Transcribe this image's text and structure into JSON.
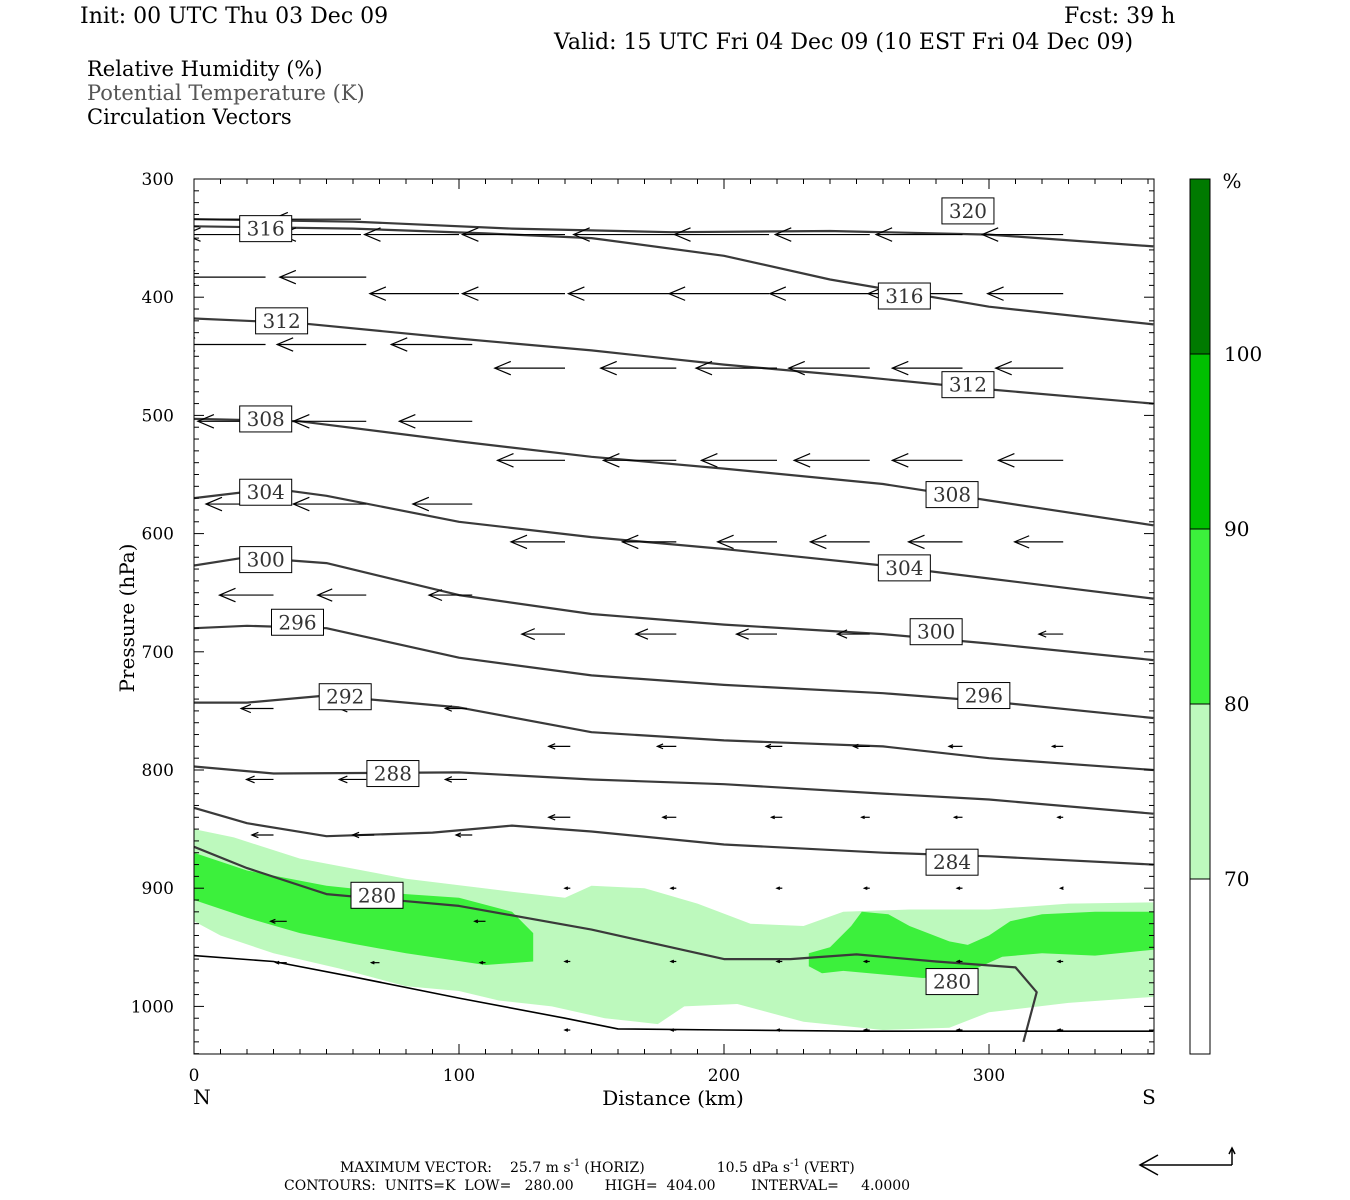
{
  "header": {
    "init": "Init: 00 UTC Thu 03 Dec 09",
    "fcst": "Fcst:   39 h",
    "valid": "Valid: 15 UTC Fri 04 Dec 09 (10 EST Fri 04 Dec 09)"
  },
  "legend": {
    "rh": "Relative Humidity (%)",
    "theta": "Potential Temperature (K)",
    "vectors": "Circulation Vectors"
  },
  "colors": {
    "rh70": "#bdf9bd",
    "rh80": "#3cf03c",
    "rh90": "#00c000",
    "rh100": "#007a00",
    "contour": "#3a3a3a",
    "theta_text": "#555555"
  },
  "chart_data": {
    "type": "cross-section",
    "xlabel": "Distance (km)",
    "ylabel": "Pressure (hPa)",
    "xlim": [
      0,
      362
    ],
    "ylim": [
      300,
      1040
    ],
    "xticks": [
      "0",
      "100",
      "200",
      "300"
    ],
    "yticks": [
      "300",
      "400",
      "500",
      "600",
      "700",
      "800",
      "900",
      "1000"
    ],
    "x_end_labels": {
      "left": "N",
      "right": "S"
    },
    "colorbar": {
      "unit": "%",
      "levels": [
        "70",
        "80",
        "90",
        "100"
      ],
      "range": [
        60,
        110
      ]
    },
    "theta_contours": [
      {
        "level": 320,
        "pts": [
          [
            0,
            334
          ],
          [
            60,
            336
          ],
          [
            120,
            342
          ],
          [
            180,
            345
          ],
          [
            240,
            344
          ],
          [
            300,
            347
          ],
          [
            362,
            357
          ]
        ]
      },
      {
        "level": 316,
        "pts": [
          [
            0,
            340
          ],
          [
            60,
            342
          ],
          [
            110,
            346
          ],
          [
            150,
            350
          ],
          [
            200,
            365
          ],
          [
            240,
            385
          ],
          [
            300,
            408
          ],
          [
            362,
            423
          ]
        ]
      },
      {
        "level": 312,
        "pts": [
          [
            0,
            418
          ],
          [
            40,
            422
          ],
          [
            100,
            435
          ],
          [
            150,
            445
          ],
          [
            200,
            457
          ],
          [
            250,
            467
          ],
          [
            300,
            478
          ],
          [
            362,
            490
          ]
        ]
      },
      {
        "level": 308,
        "pts": [
          [
            0,
            503
          ],
          [
            40,
            505
          ],
          [
            100,
            522
          ],
          [
            150,
            535
          ],
          [
            200,
            545
          ],
          [
            260,
            558
          ],
          [
            300,
            572
          ],
          [
            362,
            593
          ]
        ]
      },
      {
        "level": 304,
        "pts": [
          [
            0,
            570
          ],
          [
            30,
            562
          ],
          [
            50,
            568
          ],
          [
            100,
            590
          ],
          [
            150,
            603
          ],
          [
            200,
            613
          ],
          [
            260,
            627
          ],
          [
            300,
            638
          ],
          [
            362,
            655
          ]
        ]
      },
      {
        "level": 300,
        "pts": [
          [
            0,
            627
          ],
          [
            20,
            620
          ],
          [
            50,
            625
          ],
          [
            100,
            652
          ],
          [
            150,
            668
          ],
          [
            200,
            677
          ],
          [
            260,
            685
          ],
          [
            300,
            693
          ],
          [
            362,
            707
          ]
        ]
      },
      {
        "level": 296,
        "pts": [
          [
            0,
            680
          ],
          [
            20,
            678
          ],
          [
            50,
            680
          ],
          [
            100,
            705
          ],
          [
            150,
            720
          ],
          [
            200,
            728
          ],
          [
            260,
            735
          ],
          [
            300,
            742
          ],
          [
            362,
            756
          ]
        ]
      },
      {
        "level": 292,
        "pts": [
          [
            0,
            743
          ],
          [
            20,
            743
          ],
          [
            50,
            737
          ],
          [
            100,
            747
          ],
          [
            150,
            768
          ],
          [
            200,
            775
          ],
          [
            260,
            780
          ],
          [
            300,
            790
          ],
          [
            362,
            800
          ]
        ]
      },
      {
        "level": 288,
        "pts": [
          [
            0,
            797
          ],
          [
            30,
            803
          ],
          [
            100,
            802
          ],
          [
            150,
            808
          ],
          [
            200,
            812
          ],
          [
            260,
            820
          ],
          [
            300,
            825
          ],
          [
            362,
            837
          ]
        ]
      },
      {
        "level": 284,
        "pts": [
          [
            0,
            832
          ],
          [
            20,
            845
          ],
          [
            50,
            856
          ],
          [
            90,
            853
          ],
          [
            120,
            847
          ],
          [
            150,
            852
          ],
          [
            200,
            863
          ],
          [
            260,
            870
          ],
          [
            300,
            873
          ],
          [
            362,
            880
          ]
        ]
      },
      {
        "level": 280,
        "pts": [
          [
            0,
            865
          ],
          [
            20,
            883
          ],
          [
            50,
            905
          ],
          [
            100,
            915
          ],
          [
            150,
            935
          ],
          [
            200,
            960
          ],
          [
            225,
            960
          ],
          [
            250,
            956
          ],
          [
            280,
            962
          ],
          [
            310,
            967
          ],
          [
            318,
            988
          ],
          [
            313,
            1030
          ]
        ]
      }
    ],
    "theta_labels": [
      {
        "text": "320",
        "x": 283,
        "p": 327
      },
      {
        "text": "316",
        "x": 18,
        "p": 342
      },
      {
        "text": "316",
        "x": 259,
        "p": 399
      },
      {
        "text": "312",
        "x": 24,
        "p": 420
      },
      {
        "text": "312",
        "x": 283,
        "p": 474
      },
      {
        "text": "308",
        "x": 18,
        "p": 503
      },
      {
        "text": "308",
        "x": 277,
        "p": 567
      },
      {
        "text": "304",
        "x": 18,
        "p": 565
      },
      {
        "text": "304",
        "x": 259,
        "p": 629
      },
      {
        "text": "300",
        "x": 18,
        "p": 622
      },
      {
        "text": "300",
        "x": 271,
        "p": 683
      },
      {
        "text": "296",
        "x": 30,
        "p": 675
      },
      {
        "text": "296",
        "x": 289,
        "p": 737
      },
      {
        "text": "292",
        "x": 48,
        "p": 738
      },
      {
        "text": "288",
        "x": 66,
        "p": 803
      },
      {
        "text": "284",
        "x": 277,
        "p": 878
      },
      {
        "text": "280",
        "x": 60,
        "p": 906
      },
      {
        "text": "280",
        "x": 277,
        "p": 979
      }
    ],
    "terrain": [
      [
        0,
        957
      ],
      [
        30,
        962
      ],
      [
        60,
        975
      ],
      [
        100,
        993
      ],
      [
        140,
        1010
      ],
      [
        160,
        1019
      ],
      [
        200,
        1020
      ],
      [
        250,
        1021
      ],
      [
        300,
        1021
      ],
      [
        362,
        1021
      ]
    ],
    "rh_areas": [
      {
        "level": 70,
        "pts": [
          [
            0,
            850
          ],
          [
            15,
            857
          ],
          [
            40,
            875
          ],
          [
            80,
            892
          ],
          [
            120,
            903
          ],
          [
            140,
            908
          ],
          [
            150,
            898
          ],
          [
            170,
            900
          ],
          [
            190,
            913
          ],
          [
            210,
            930
          ],
          [
            230,
            932
          ],
          [
            245,
            920
          ],
          [
            270,
            918
          ],
          [
            300,
            918
          ],
          [
            330,
            913
          ],
          [
            362,
            912
          ],
          [
            362,
            992
          ],
          [
            330,
            997
          ],
          [
            300,
            1005
          ],
          [
            285,
            1018
          ],
          [
            260,
            1020
          ],
          [
            230,
            1013
          ],
          [
            205,
            998
          ],
          [
            185,
            1000
          ],
          [
            175,
            1015
          ],
          [
            155,
            1010
          ],
          [
            135,
            1000
          ],
          [
            115,
            995
          ],
          [
            100,
            987
          ],
          [
            80,
            983
          ],
          [
            55,
            968
          ],
          [
            30,
            955
          ],
          [
            10,
            940
          ],
          [
            0,
            928
          ]
        ]
      },
      {
        "level": 70,
        "pts": [
          [
            210,
            948
          ],
          [
            220,
            958
          ],
          [
            215,
            970
          ],
          [
            205,
            968
          ]
        ]
      },
      {
        "level": 80,
        "pts": [
          [
            0,
            870
          ],
          [
            20,
            885
          ],
          [
            50,
            898
          ],
          [
            80,
            905
          ],
          [
            100,
            908
          ],
          [
            120,
            920
          ],
          [
            128,
            938
          ],
          [
            128,
            962
          ],
          [
            110,
            965
          ],
          [
            95,
            960
          ],
          [
            80,
            955
          ],
          [
            60,
            947
          ],
          [
            40,
            938
          ],
          [
            20,
            925
          ],
          [
            0,
            910
          ]
        ]
      },
      {
        "level": 80,
        "pts": [
          [
            248,
            932
          ],
          [
            252,
            920
          ],
          [
            262,
            922
          ],
          [
            270,
            932
          ],
          [
            285,
            945
          ],
          [
            292,
            948
          ],
          [
            300,
            940
          ],
          [
            308,
            928
          ],
          [
            320,
            922
          ],
          [
            340,
            920
          ],
          [
            362,
            920
          ],
          [
            362,
            952
          ],
          [
            340,
            957
          ],
          [
            320,
            955
          ],
          [
            305,
            958
          ],
          [
            295,
            968
          ],
          [
            285,
            975
          ],
          [
            275,
            976
          ],
          [
            260,
            973
          ],
          [
            245,
            970
          ],
          [
            237,
            972
          ],
          [
            232,
            966
          ],
          [
            232,
            955
          ],
          [
            240,
            950
          ]
        ]
      }
    ],
    "vectors": [
      {
        "p": 334,
        "x": [
          27,
          63
        ],
        "u": [
          -35,
          -33
        ]
      },
      {
        "p": 347,
        "x": [
          27,
          63,
          100,
          140,
          182,
          217,
          255,
          290,
          328
        ],
        "u": [
          -30,
          -30,
          -35,
          -38,
          -38,
          -35,
          -35,
          -32,
          -30
        ]
      },
      {
        "p": 383,
        "x": [
          27,
          65
        ],
        "u": [
          -32,
          -32
        ]
      },
      {
        "p": 397,
        "x": [
          100,
          140,
          180,
          217,
          255,
          290,
          328
        ],
        "u": [
          -33,
          -38,
          -38,
          -37,
          -37,
          -35,
          -28
        ]
      },
      {
        "p": 440,
        "x": [
          27,
          65,
          105
        ],
        "u": [
          -32,
          -33,
          -30
        ]
      },
      {
        "p": 460,
        "x": [
          140,
          182,
          220,
          255,
          290,
          328
        ],
        "u": [
          -26,
          -28,
          -30,
          -30,
          -26,
          -25
        ]
      },
      {
        "p": 505,
        "x": [
          30,
          65,
          105
        ],
        "u": [
          -28,
          -27,
          -27
        ]
      },
      {
        "p": 538,
        "x": [
          140,
          182,
          220,
          255,
          290,
          328
        ],
        "u": [
          -25,
          -27,
          -28,
          -28,
          -26,
          -24
        ]
      },
      {
        "p": 575,
        "x": [
          30,
          65,
          105
        ],
        "u": [
          -25,
          -27,
          -22
        ]
      },
      {
        "p": 607,
        "x": [
          140,
          182,
          220,
          255,
          290,
          328
        ],
        "u": [
          -20,
          -20,
          -22,
          -22,
          -20,
          -18
        ]
      },
      {
        "p": 652,
        "x": [
          30,
          65,
          105
        ],
        "u": [
          -20,
          -18,
          -16
        ]
      },
      {
        "p": 685,
        "x": [
          140,
          182,
          220,
          255,
          290,
          328
        ],
        "u": [
          -16,
          -15,
          -15,
          -12,
          -10,
          -9
        ]
      },
      {
        "p": 748,
        "x": [
          30,
          65,
          103
        ],
        "u": [
          -12,
          -10,
          -8
        ]
      },
      {
        "p": 780,
        "x": [
          142,
          182,
          222,
          255,
          290,
          328
        ],
        "u": [
          -8,
          -7,
          -6,
          -6,
          -5,
          -4
        ]
      },
      {
        "p": 808,
        "x": [
          30,
          65,
          103
        ],
        "u": [
          -10,
          -10,
          -8
        ]
      },
      {
        "p": 840,
        "x": [
          142,
          182,
          222,
          255,
          290,
          328
        ],
        "u": [
          -8,
          -5,
          -4,
          -3,
          -3,
          -2
        ]
      },
      {
        "p": 855,
        "x": [
          30,
          68,
          105
        ],
        "u": [
          -8,
          -8,
          -6
        ]
      },
      {
        "p": 900,
        "x": [
          142,
          182,
          222,
          255,
          290,
          328
        ],
        "u": [
          -2,
          -2,
          -2,
          -2,
          -2,
          -1
        ]
      },
      {
        "p": 928,
        "x": [
          35,
          110
        ],
        "u": [
          -6,
          -4
        ]
      },
      {
        "p": 962,
        "x": [
          142,
          182,
          222,
          255,
          290,
          328
        ],
        "u": [
          -2,
          -2,
          -2,
          -2,
          -2,
          -2
        ]
      },
      {
        "p": 963,
        "x": [
          35,
          70,
          110
        ],
        "u": [
          -4,
          -3,
          -2
        ]
      },
      {
        "p": 1020,
        "x": [
          142,
          182,
          222,
          255,
          290,
          328
        ],
        "u": [
          -2,
          -2,
          -2,
          -2,
          -2,
          -2
        ]
      }
    ]
  },
  "footer": {
    "max_vector_label": "MAXIMUM VECTOR:",
    "horiz_value": "25.7 m s",
    "horiz_exp": "-1",
    "horiz_tag": "(HORIZ)",
    "vert_value": "10.5 dPa s",
    "vert_exp": "-1",
    "vert_tag": "(VERT)",
    "contours": "CONTOURS:  UNITS=K  LOW=   280.00       HIGH=  404.00        INTERVAL=     4.0000"
  }
}
